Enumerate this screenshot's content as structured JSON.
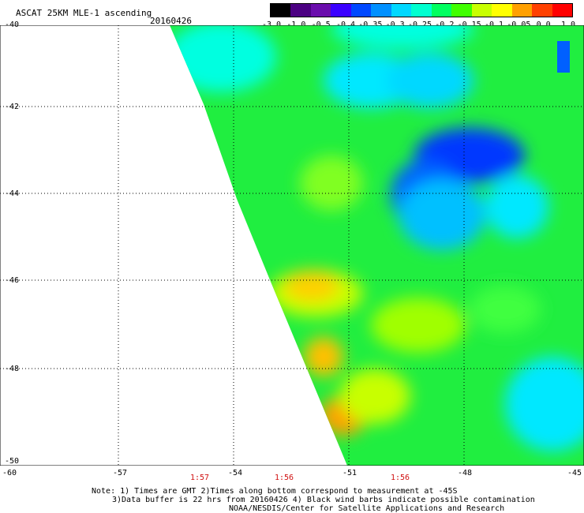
{
  "header": {
    "title": "ASCAT 25KM MLE-1 ascending",
    "date": "20160426"
  },
  "colorbar": {
    "labels": [
      "-3.0",
      "-1.0",
      "-0.5",
      "-0.4",
      "-0.35",
      "-0.3",
      "-0.25",
      "-0.2",
      "-0.15",
      "-0.1",
      "-0.05",
      "0.0",
      "1.0"
    ],
    "colors": [
      "#000000",
      "#4b0082",
      "#6a0dad",
      "#3a00ff",
      "#0048ff",
      "#0090ff",
      "#00d8ff",
      "#00ffd0",
      "#00ff60",
      "#40ff00",
      "#c8ff00",
      "#ffff00",
      "#ffa000",
      "#ff4000",
      "#ff0000"
    ]
  },
  "map": {
    "y_ticks": [
      "-40",
      "-42",
      "-44",
      "-46",
      "-48",
      "-50"
    ],
    "x_ticks": [
      "-60",
      "-57",
      "-54",
      "-51",
      "-48",
      "-45"
    ],
    "pass_times": [
      "1:57",
      "1:56",
      "1:56"
    ]
  },
  "notes": {
    "line1": "Note: 1) Times are GMT 2)Times along bottom correspond to measurement at -45S",
    "line2": "3)Data buffer is 22 hrs from 20160426 4) Black wind barbs indicate possible contamination",
    "line3": "NOAA/NESDIS/Center for Satellite Applications and Research"
  }
}
